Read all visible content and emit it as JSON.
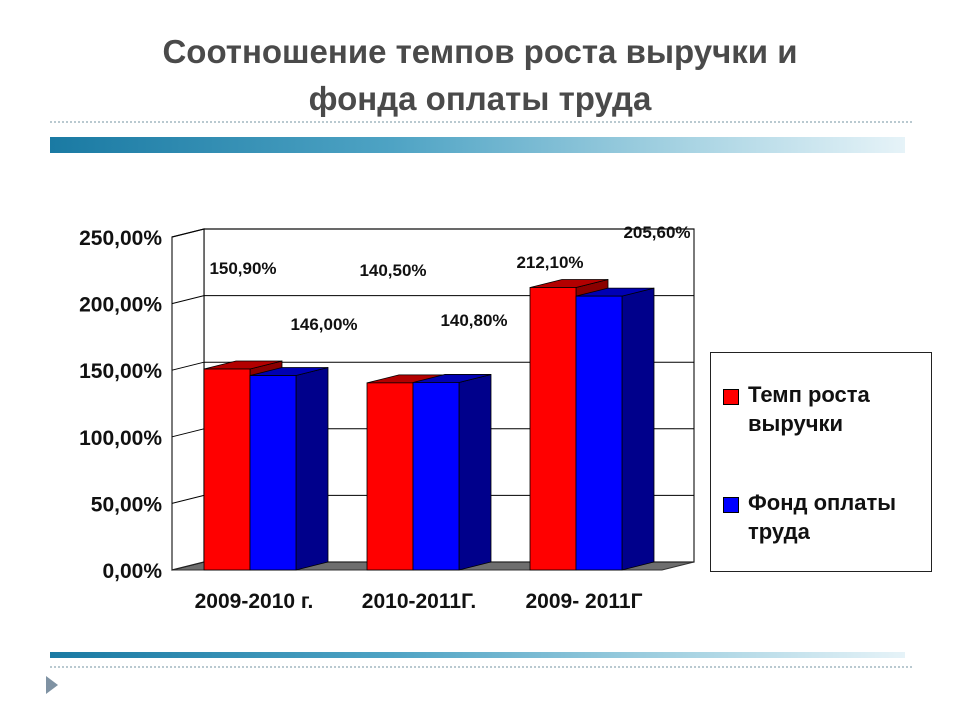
{
  "title_lines": [
    "Соотношение темпов роста выручки и",
    "фонда оплаты труда"
  ],
  "colors": {
    "series1": "#ff0000",
    "series1_side": "#8b0000",
    "series1_top": "#b30000",
    "series2": "#0000ff",
    "series2_side": "#00008b",
    "series2_top": "#0000b3",
    "title": "#4a4a4a",
    "band_dark": "#1a7aa3",
    "band_light": "#e6f3f8"
  },
  "legend": {
    "items": [
      {
        "label": "Темп роста выручки",
        "color": "#ff0000"
      },
      {
        "label": "Фонд оплаты труда",
        "color": "#0000ff"
      }
    ]
  },
  "chart_data": {
    "type": "bar",
    "style": "3d-clustered",
    "categories": [
      "2009-2010 г.",
      "2010-2011Г.",
      "2009- 2011Г"
    ],
    "series": [
      {
        "name": "Темп роста выручки",
        "values": [
          150.9,
          140.5,
          212.1
        ],
        "labels": [
          "150,90%",
          "140,50%",
          "212,10%"
        ]
      },
      {
        "name": "Фонд оплаты труда",
        "values": [
          146.0,
          140.8,
          205.6
        ],
        "labels": [
          "146,00%",
          "140,80%",
          "205,60%"
        ]
      }
    ],
    "y_ticks": [
      0,
      50,
      100,
      150,
      200,
      250
    ],
    "y_tick_labels": [
      "0,00%",
      "50,00%",
      "100,00%",
      "150,00%",
      "200,00%",
      "250,00%"
    ],
    "ylim": [
      0,
      250
    ],
    "grid": true,
    "legend_position": "right"
  }
}
